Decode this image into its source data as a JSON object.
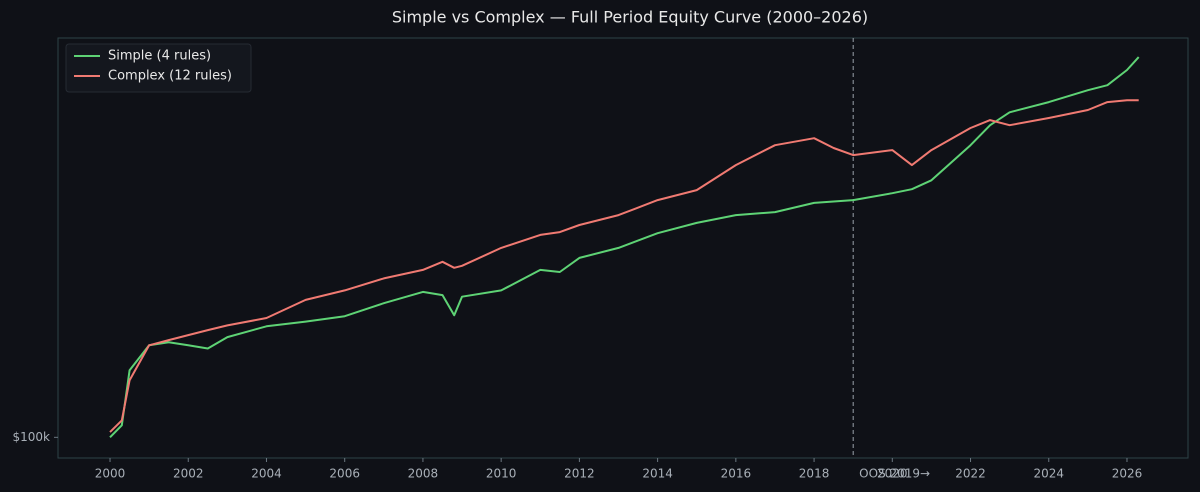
{
  "chart_data": {
    "type": "line",
    "title": "Simple vs Complex — Full Period Equity Curve (2000–2026)",
    "x": [
      2000,
      2000.3,
      2000.5,
      2001,
      2001.5,
      2002,
      2002.5,
      2003,
      2004,
      2005,
      2006,
      2007,
      2008,
      2008.5,
      2008.8,
      2009,
      2010,
      2011,
      2011.5,
      2012,
      2013,
      2014,
      2015,
      2016,
      2017,
      2018,
      2018.5,
      2019,
      2020,
      2020.5,
      2021,
      2022,
      2022.5,
      2023,
      2024,
      2025,
      2025.5,
      2026,
      2026.3
    ],
    "series": [
      {
        "name": "Simple (4 rules)",
        "color": "#5ed375",
        "values": [
          100000,
          107000,
          146000,
          168000,
          171000,
          168000,
          165000,
          176000,
          187000,
          192000,
          198000,
          213000,
          227000,
          223000,
          199000,
          221000,
          229000,
          257000,
          254000,
          275000,
          291000,
          316000,
          335000,
          350000,
          356000,
          375000,
          378000,
          381000,
          396000,
          405000,
          426000,
          519000,
          581000,
          625000,
          662000,
          708000,
          728000,
          793000,
          853000
        ]
      },
      {
        "name": "Complex (12 rules)",
        "color": "#f07a72",
        "values": [
          103000,
          110000,
          138000,
          168000,
          173000,
          178000,
          183000,
          188000,
          196000,
          217000,
          229000,
          245000,
          257000,
          269000,
          260000,
          263000,
          291000,
          313000,
          318000,
          331000,
          350000,
          381000,
          403000,
          464000,
          519000,
          540000,
          511000,
          491000,
          505000,
          464000,
          505000,
          572000,
          598000,
          581000,
          605000,
          633000,
          662000,
          669000,
          669000
        ]
      }
    ],
    "xlim": [
      1998.67,
      2027.56
    ],
    "xticks": [
      2000,
      2002,
      2004,
      2006,
      2008,
      2010,
      2012,
      2014,
      2016,
      2018,
      2020,
      2022,
      2024,
      2026
    ],
    "ylim": [
      89000,
      950000
    ],
    "yticks": [
      {
        "value": 100000,
        "label": "$100k"
      }
    ],
    "log_y": true,
    "legend": "upper-left",
    "vlines": [
      {
        "x": 2019,
        "label": "OOS 2019→"
      }
    ]
  }
}
